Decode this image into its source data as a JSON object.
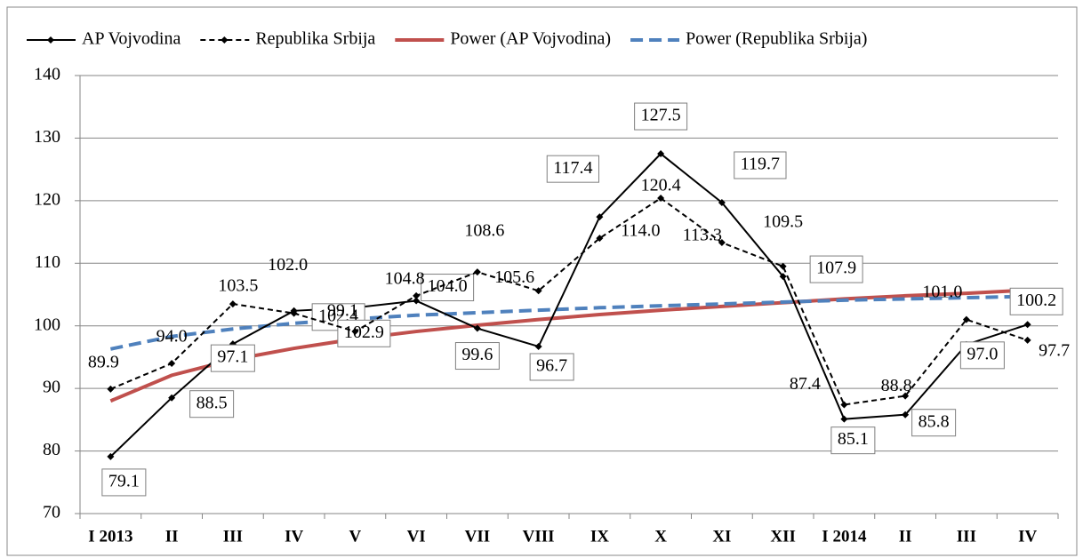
{
  "chart_data": {
    "type": "line",
    "categories": [
      "I 2013",
      "II",
      "III",
      "IV",
      "V",
      "VI",
      "VII",
      "VIII",
      "IX",
      "X",
      "XI",
      "XII",
      "I 2014",
      "II",
      "III",
      "IV"
    ],
    "series": [
      {
        "name": "AP Vojvodina",
        "color": "#000000",
        "linestyle": "solid",
        "markers": true,
        "boxed_labels": true,
        "values": [
          79.1,
          88.5,
          97.1,
          102.4,
          102.9,
          104.0,
          99.6,
          96.7,
          117.4,
          127.5,
          119.7,
          107.9,
          85.1,
          85.8,
          97.0,
          100.2
        ],
        "value_labels": [
          "79.1",
          "88.5",
          "97.1",
          "102.4",
          "102.9",
          "104.0",
          "99.6",
          "96.7",
          "117.4",
          "127.5",
          "119.7",
          "107.9",
          "85.1",
          "85.8",
          "97.0",
          "100.2"
        ]
      },
      {
        "name": "Republika Srbija",
        "color": "#000000",
        "linestyle": "dashed",
        "markers": true,
        "boxed_labels": false,
        "values": [
          89.9,
          94.0,
          103.5,
          102.0,
          99.1,
          104.8,
          108.6,
          105.6,
          114.0,
          120.4,
          113.3,
          109.5,
          87.4,
          88.8,
          101.0,
          97.7
        ],
        "value_labels": [
          "89.9",
          "94.0",
          "103.5",
          "102.0",
          "99.1",
          "104.8",
          "108.6",
          "105.6",
          "114.0",
          "120.4",
          "113.3",
          "109.5",
          "87.4",
          "88.8",
          "101.0",
          "97.7"
        ]
      },
      {
        "name": "Power (AP Vojvodina)",
        "color": "#c0504d",
        "linestyle": "solid",
        "markers": false,
        "values": [
          88.0,
          92.1,
          94.6,
          96.4,
          97.9,
          99.1,
          100.1,
          101.0,
          101.8,
          102.5,
          103.1,
          103.7,
          104.3,
          104.8,
          105.2,
          105.7
        ]
      },
      {
        "name": "Power (Republika Srbija)",
        "color": "#4f81bd",
        "linestyle": "dashed",
        "markers": false,
        "values": [
          96.3,
          98.3,
          99.5,
          100.4,
          101.1,
          101.7,
          102.1,
          102.5,
          102.9,
          103.2,
          103.5,
          103.8,
          104.1,
          104.3,
          104.5,
          104.7
        ]
      }
    ],
    "ylim": [
      70,
      140
    ],
    "yticks": [
      70,
      80,
      90,
      100,
      110,
      120,
      130,
      140
    ],
    "grid": true,
    "legend": "top"
  }
}
